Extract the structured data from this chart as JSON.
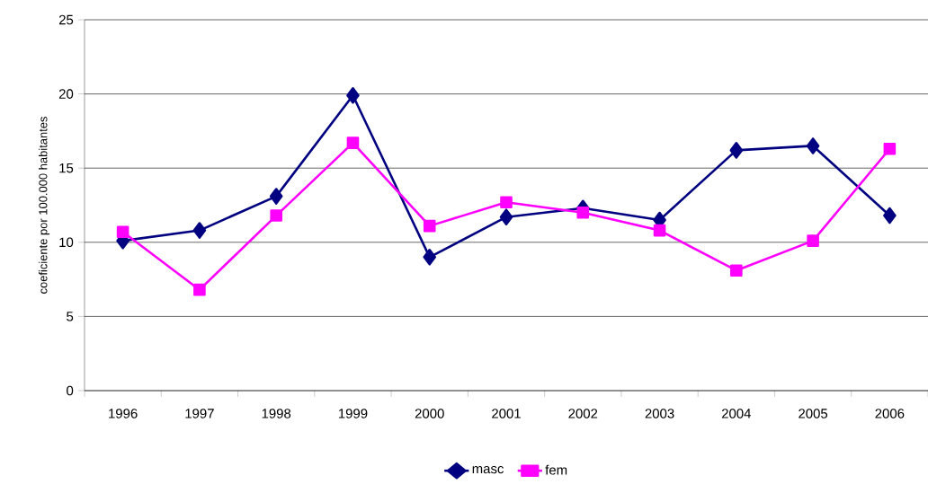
{
  "chart_data": {
    "type": "line",
    "ylabel": "coeficiente por 100.000 habitantes",
    "categories": [
      "1996",
      "1997",
      "1998",
      "1999",
      "2000",
      "2001",
      "2002",
      "2003",
      "2004",
      "2005",
      "2006"
    ],
    "series": [
      {
        "name": "masc",
        "color": "#000080",
        "marker": "diamond",
        "values": [
          10.1,
          10.8,
          13.1,
          19.9,
          9.0,
          11.7,
          12.3,
          11.5,
          16.2,
          16.5,
          11.8
        ]
      },
      {
        "name": "fem",
        "color": "#ff00ff",
        "marker": "square",
        "values": [
          10.7,
          6.8,
          11.8,
          16.7,
          11.1,
          12.7,
          12.0,
          10.8,
          8.1,
          10.1,
          16.3
        ]
      }
    ],
    "ylim": [
      0,
      25
    ],
    "yticks": [
      0,
      5,
      10,
      15,
      20,
      25
    ],
    "grid": "y",
    "legend": "bottom",
    "line_style": "solid"
  }
}
